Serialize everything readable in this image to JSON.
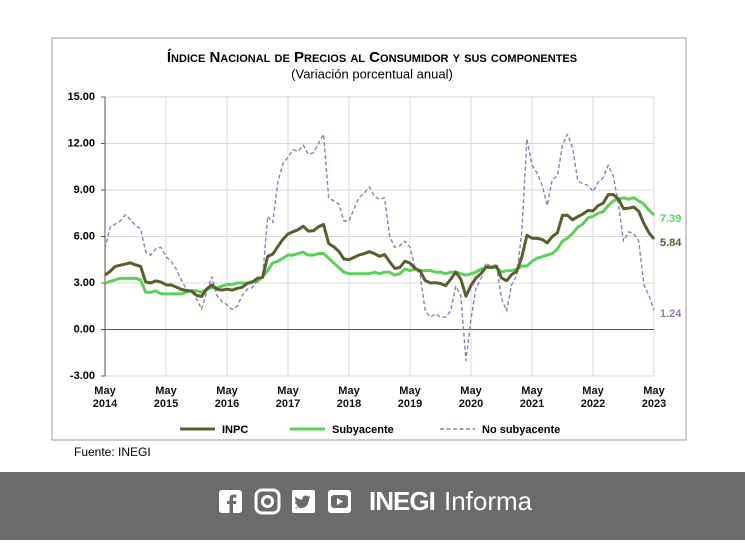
{
  "chart_data": {
    "type": "line",
    "title": "Índice Nacional de Precios al Consumidor y sus componentes",
    "subtitle": "(Variación porcentual anual)",
    "categories": [
      "May 2014",
      null,
      null,
      null,
      null,
      null,
      null,
      null,
      null,
      null,
      null,
      null,
      "May 2015",
      null,
      null,
      null,
      null,
      null,
      null,
      null,
      null,
      null,
      null,
      null,
      "May 2016",
      null,
      null,
      null,
      null,
      null,
      null,
      null,
      null,
      null,
      null,
      null,
      "May 2017",
      null,
      null,
      null,
      null,
      null,
      null,
      null,
      null,
      null,
      null,
      null,
      "May 2018",
      null,
      null,
      null,
      null,
      null,
      null,
      null,
      null,
      null,
      null,
      null,
      "May 2019",
      null,
      null,
      null,
      null,
      null,
      null,
      null,
      null,
      null,
      null,
      null,
      "May 2020",
      null,
      null,
      null,
      null,
      null,
      null,
      null,
      null,
      null,
      null,
      null,
      "May 2021",
      null,
      null,
      null,
      null,
      null,
      null,
      null,
      null,
      null,
      null,
      null,
      "May 2022",
      null,
      null,
      null,
      null,
      null,
      null,
      null,
      null,
      null,
      null,
      null,
      "May 2023"
    ],
    "series": [
      {
        "name": "INPC",
        "color": "#5a5e2c",
        "values": [
          3.51,
          3.75,
          4.07,
          4.15,
          4.22,
          4.3,
          4.17,
          4.08,
          3.07,
          3.0,
          3.14,
          3.06,
          2.88,
          2.87,
          2.74,
          2.59,
          2.52,
          2.48,
          2.21,
          2.13,
          2.61,
          2.87,
          2.6,
          2.54,
          2.6,
          2.54,
          2.65,
          2.73,
          2.97,
          3.06,
          3.31,
          3.36,
          4.72,
          4.86,
          5.35,
          5.82,
          6.16,
          6.31,
          6.44,
          6.66,
          6.35,
          6.37,
          6.63,
          6.77,
          5.55,
          5.34,
          5.04,
          4.55,
          4.51,
          4.65,
          4.81,
          4.9,
          5.02,
          4.9,
          4.72,
          4.83,
          4.37,
          3.94,
          4.0,
          4.41,
          4.28,
          3.95,
          3.78,
          3.16,
          3.0,
          3.02,
          2.97,
          2.83,
          3.24,
          3.7,
          3.25,
          2.15,
          2.84,
          3.33,
          3.62,
          4.05,
          4.01,
          4.09,
          3.33,
          3.15,
          3.54,
          3.76,
          4.67,
          6.08,
          5.89,
          5.88,
          5.81,
          5.59,
          6.0,
          6.24,
          7.37,
          7.36,
          7.07,
          7.28,
          7.45,
          7.68,
          7.65,
          7.99,
          8.15,
          8.7,
          8.7,
          8.41,
          7.8,
          7.82,
          7.91,
          7.62,
          6.85,
          6.25,
          5.84
        ]
      },
      {
        "name": "Subyacente",
        "color": "#55d455",
        "values": [
          3.0,
          3.1,
          3.2,
          3.3,
          3.3,
          3.3,
          3.3,
          3.2,
          2.4,
          2.4,
          2.5,
          2.3,
          2.3,
          2.3,
          2.3,
          2.3,
          2.4,
          2.5,
          2.5,
          2.4,
          2.6,
          2.7,
          2.7,
          2.8,
          2.9,
          2.9,
          3.0,
          3.0,
          3.0,
          3.1,
          3.1,
          3.4,
          3.8,
          4.3,
          4.4,
          4.6,
          4.8,
          4.8,
          4.9,
          5.0,
          4.8,
          4.8,
          4.9,
          4.9,
          4.6,
          4.3,
          4.0,
          3.7,
          3.6,
          3.6,
          3.6,
          3.6,
          3.6,
          3.7,
          3.6,
          3.7,
          3.7,
          3.5,
          3.6,
          3.9,
          3.8,
          3.9,
          3.8,
          3.8,
          3.8,
          3.7,
          3.7,
          3.6,
          3.7,
          3.7,
          3.6,
          3.5,
          3.6,
          3.7,
          3.9,
          4.0,
          4.0,
          4.0,
          3.7,
          3.8,
          3.8,
          3.9,
          4.1,
          4.1,
          4.4,
          4.6,
          4.7,
          4.8,
          4.9,
          5.2,
          5.7,
          5.9,
          6.2,
          6.6,
          6.8,
          7.2,
          7.3,
          7.5,
          7.6,
          8.0,
          8.3,
          8.4,
          8.5,
          8.4,
          8.5,
          8.3,
          8.1,
          7.7,
          7.39
        ]
      },
      {
        "name": "No subyacente",
        "color": "#8383bb",
        "dashed": true,
        "values": [
          5.2,
          6.6,
          6.8,
          7.0,
          7.4,
          7.1,
          6.7,
          6.5,
          5.0,
          4.8,
          5.2,
          5.3,
          4.7,
          4.4,
          3.9,
          3.2,
          2.6,
          2.5,
          2.0,
          1.3,
          2.4,
          3.4,
          2.2,
          1.8,
          1.6,
          1.3,
          1.5,
          2.2,
          2.6,
          2.7,
          3.2,
          3.4,
          7.3,
          6.9,
          9.5,
          10.7,
          11.1,
          11.6,
          11.5,
          11.9,
          11.3,
          11.4,
          12.0,
          12.6,
          8.5,
          8.3,
          8.1,
          7.0,
          7.0,
          7.8,
          8.5,
          8.8,
          9.2,
          8.6,
          8.4,
          8.5,
          6.0,
          5.3,
          5.4,
          5.7,
          5.3,
          4.0,
          3.5,
          1.2,
          0.8,
          1.0,
          0.8,
          0.8,
          1.2,
          2.8,
          2.2,
          -2.0,
          0.7,
          2.7,
          3.3,
          4.3,
          4.0,
          4.2,
          2.0,
          1.2,
          2.9,
          3.5,
          6.3,
          12.3,
          10.6,
          10.1,
          9.3,
          8.0,
          9.7,
          9.9,
          11.9,
          12.6,
          11.7,
          9.6,
          9.4,
          9.3,
          8.9,
          9.5,
          9.8,
          10.6,
          9.9,
          8.1,
          5.7,
          6.3,
          6.2,
          5.7,
          2.9,
          2.2,
          1.24
        ]
      }
    ],
    "ylim": [
      -3,
      15
    ],
    "yticks": [
      {
        "value": -3,
        "label": "-3.00"
      },
      {
        "value": 0,
        "label": "0.00"
      },
      {
        "value": 3,
        "label": "3.00"
      },
      {
        "value": 6,
        "label": "6.00"
      },
      {
        "value": 9,
        "label": "9.00"
      },
      {
        "value": 12,
        "label": "12.00"
      },
      {
        "value": 15,
        "label": "15.00"
      }
    ],
    "grid": true,
    "source": "Fuente: INEGI"
  },
  "footer": {
    "brand_bold": "INEGI",
    "brand": "Informa"
  }
}
